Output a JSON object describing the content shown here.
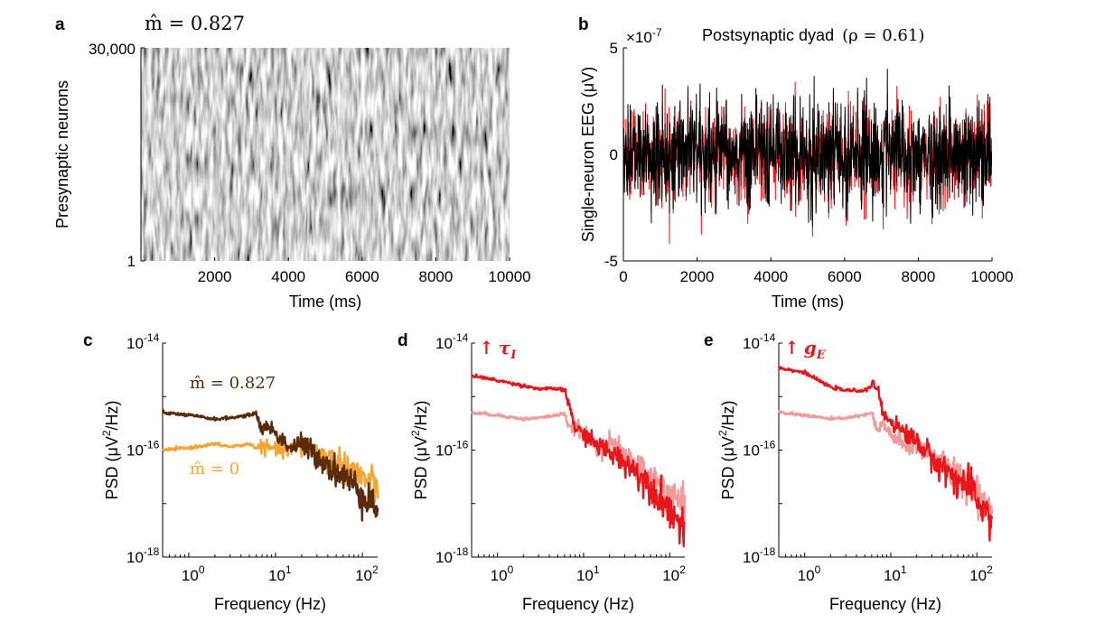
{
  "chart_data": [
    {
      "panel": "a",
      "type": "heatmap",
      "title": "m̂ = 0.827",
      "xlabel": "Time (ms)",
      "ylabel": "Presynaptic neurons",
      "xticks": [
        "2000",
        "4000",
        "6000",
        "8000",
        "10000"
      ],
      "xlim": [
        0,
        10000
      ],
      "yticks": [
        "1",
        "30,000"
      ],
      "ylim": [
        1,
        30000
      ]
    },
    {
      "panel": "b",
      "type": "line",
      "title": "Postsynaptic dyad",
      "title_math": "(ρ = 0.61)",
      "xlabel": "Time (ms)",
      "ylabel": "Single-neuron EEG (μV)",
      "exponent_label": "×10",
      "exponent_power": "-7",
      "xticks": [
        "0",
        "2000",
        "4000",
        "6000",
        "8000",
        "10000"
      ],
      "xlim": [
        0,
        10000
      ],
      "yticks": [
        "-5",
        "0",
        "5"
      ],
      "ylim": [
        -5,
        5
      ],
      "series": [
        {
          "color": "#e8161b",
          "mean": 0,
          "approx_range": [
            -4.2,
            5.0
          ]
        },
        {
          "color": "#000000",
          "mean": 0,
          "approx_range": [
            -3.4,
            4.8
          ]
        }
      ]
    },
    {
      "panel": "c",
      "type": "line",
      "xlabel": "Frequency (Hz)",
      "ylabel_main": "PSD (μV",
      "ylabel_sup": "2",
      "ylabel_tail": "/Hz)",
      "x_scale": "log",
      "y_scale": "log",
      "xlim": [
        0.5,
        150
      ],
      "ylim": [
        1e-18,
        1e-14
      ],
      "xtick_base": "10",
      "xtick_powers": [
        "0",
        "1",
        "2"
      ],
      "ytick_base": "10",
      "ytick_powers": [
        "-18",
        "-16",
        "-14"
      ],
      "series": [
        {
          "name": "m̂ = 0.827",
          "color": "#5a2a0c",
          "x": [
            0.5,
            1,
            2,
            3,
            5,
            6,
            7,
            8,
            10,
            15,
            20,
            30,
            50,
            80,
            100,
            150
          ],
          "y": [
            5e-16,
            4.5e-16,
            3.8e-16,
            4e-16,
            4.5e-16,
            5e-16,
            2.2e-16,
            3e-16,
            2e-16,
            1.1e-16,
            1.3e-16,
            8e-17,
            4e-17,
            2.2e-17,
            1.6e-17,
            8e-18
          ]
        },
        {
          "name": "m̂ = 0",
          "color": "#f4a535",
          "x": [
            0.5,
            1,
            2,
            3,
            5,
            6,
            7,
            8,
            10,
            15,
            20,
            30,
            50,
            80,
            100,
            150
          ],
          "y": [
            1e-16,
            1.1e-16,
            1.3e-16,
            1.15e-16,
            1.3e-16,
            1.1e-16,
            1.2e-16,
            1.1e-16,
            1.05e-16,
            1e-16,
            1.2e-16,
            9e-17,
            6e-17,
            4e-17,
            3e-17,
            2e-17
          ]
        }
      ]
    },
    {
      "panel": "d",
      "type": "line",
      "annotation_arrow": "↑",
      "annotation_symbol": "τ",
      "annotation_sub": "I",
      "annotation_color": "#e8161b",
      "xlabel": "Frequency (Hz)",
      "ylabel_main": "PSD (μV",
      "ylabel_sup": "2",
      "ylabel_tail": "/Hz)",
      "x_scale": "log",
      "y_scale": "log",
      "xlim": [
        0.5,
        150
      ],
      "ylim": [
        1e-18,
        1e-14
      ],
      "xtick_base": "10",
      "xtick_powers": [
        "0",
        "1",
        "2"
      ],
      "ytick_base": "10",
      "ytick_powers": [
        "-18",
        "-16",
        "-14"
      ],
      "series": [
        {
          "color": "#e8161b",
          "x": [
            0.5,
            1,
            2,
            3,
            5,
            6,
            7,
            8,
            10,
            15,
            20,
            30,
            50,
            80,
            100,
            150
          ],
          "y": [
            2.5e-15,
            2e-15,
            1.6e-15,
            1.4e-15,
            1.4e-15,
            1.3e-15,
            6e-16,
            2.5e-16,
            2e-16,
            1.2e-16,
            9e-17,
            6e-17,
            3e-17,
            1.2e-17,
            8e-18,
            3e-18
          ]
        },
        {
          "color": "#f29a9a",
          "x": [
            0.5,
            1,
            2,
            3,
            5,
            6,
            7,
            8,
            10,
            15,
            20,
            30,
            50,
            80,
            100,
            150
          ],
          "y": [
            5e-16,
            4.5e-16,
            3.8e-16,
            4e-16,
            4.5e-16,
            5e-16,
            2.2e-16,
            3e-16,
            2e-16,
            1.1e-16,
            1.3e-16,
            8e-17,
            4e-17,
            2.2e-17,
            1.6e-17,
            8e-18
          ]
        }
      ]
    },
    {
      "panel": "e",
      "type": "line",
      "annotation_arrow": "↑",
      "annotation_symbol": "g",
      "annotation_sub": "E",
      "annotation_color": "#e8161b",
      "xlabel": "Frequency (Hz)",
      "ylabel_main": "PSD (μV",
      "ylabel_sup": "2",
      "ylabel_tail": "/Hz)",
      "x_scale": "log",
      "y_scale": "log",
      "xlim": [
        0.5,
        150
      ],
      "ylim": [
        1e-18,
        1e-14
      ],
      "xtick_base": "10",
      "xtick_powers": [
        "0",
        "1",
        "2"
      ],
      "ytick_base": "10",
      "ytick_powers": [
        "-18",
        "-16",
        "-14"
      ],
      "series": [
        {
          "color": "#e8161b",
          "x": [
            0.5,
            1,
            2,
            3,
            5,
            6,
            7,
            8,
            10,
            15,
            20,
            30,
            50,
            80,
            100,
            150
          ],
          "y": [
            3.5e-15,
            2.8e-15,
            1.5e-15,
            1.3e-15,
            1.3e-15,
            1.6e-15,
            1.5e-15,
            5e-16,
            3.5e-16,
            2e-16,
            1.5e-16,
            7e-17,
            3.5e-17,
            2e-17,
            1.2e-17,
            5e-18
          ]
        },
        {
          "color": "#f29a9a",
          "x": [
            0.5,
            1,
            2,
            3,
            5,
            6,
            7,
            8,
            10,
            15,
            20,
            30,
            50,
            80,
            100,
            150
          ],
          "y": [
            5e-16,
            4.5e-16,
            3.8e-16,
            4e-16,
            4.5e-16,
            5e-16,
            2.2e-16,
            3e-16,
            2e-16,
            1.1e-16,
            1.3e-16,
            8e-17,
            4e-17,
            2.2e-17,
            1.6e-17,
            8e-18
          ]
        }
      ]
    }
  ]
}
